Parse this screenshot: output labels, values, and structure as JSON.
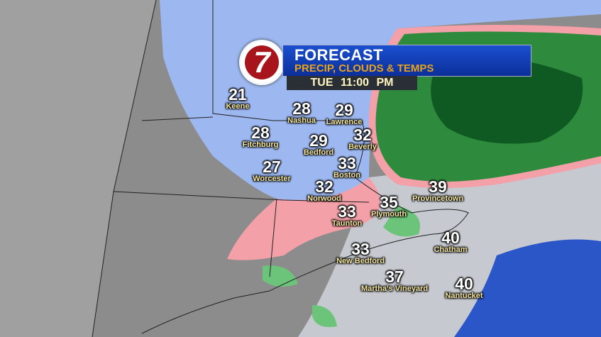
{
  "header": {
    "logo_text": "7",
    "title": "FORECAST",
    "subtitle": "PRECIP, CLOUDS & TEMPS",
    "time": "TUE  11:00 PM"
  },
  "colors": {
    "snow": "#9db8f0",
    "mix": "#f4a0a8",
    "rain_light": "#6cc47a",
    "rain_heavy": "#0e5a22",
    "banner": "#1a4fcf",
    "subtitle": "#e8a21a"
  },
  "cities": [
    {
      "temp": "21",
      "name": "Keene"
    },
    {
      "temp": "28",
      "name": "Nashua"
    },
    {
      "temp": "29",
      "name": "Lawrence"
    },
    {
      "temp": "28",
      "name": "Fitchburg"
    },
    {
      "temp": "29",
      "name": "Bedford"
    },
    {
      "temp": "32",
      "name": "Beverly"
    },
    {
      "temp": "33",
      "name": "Boston"
    },
    {
      "temp": "27",
      "name": "Worcester"
    },
    {
      "temp": "32",
      "name": "Norwood"
    },
    {
      "temp": "35",
      "name": "Plymouth"
    },
    {
      "temp": "39",
      "name": "Provincetown"
    },
    {
      "temp": "33",
      "name": "Taunton"
    },
    {
      "temp": "40",
      "name": "Chatham"
    },
    {
      "temp": "33",
      "name": "New Bedford"
    },
    {
      "temp": "37",
      "name": "Martha's Vineyard"
    },
    {
      "temp": "40",
      "name": "Nantucket"
    }
  ]
}
